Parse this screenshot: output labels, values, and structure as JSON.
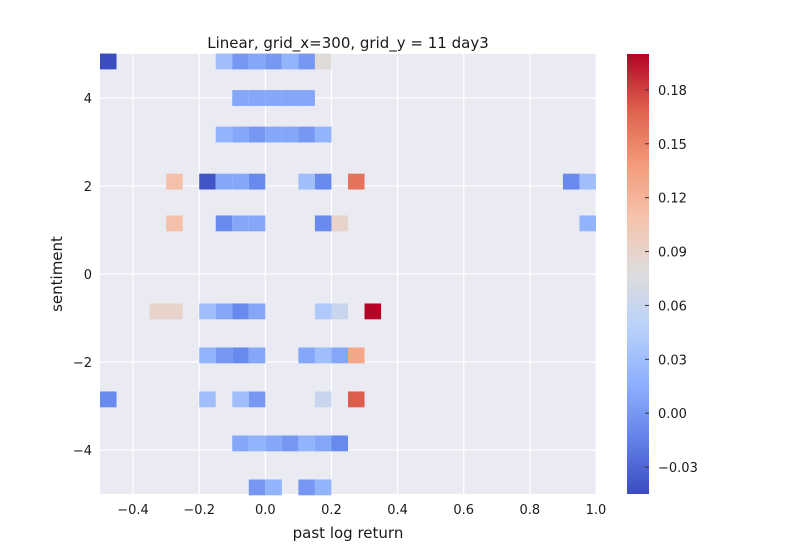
{
  "chart_data": {
    "type": "heatmap",
    "title": "Linear, grid_x=300, grid_y = 11 day3",
    "xlabel": "past log return",
    "ylabel": "sentiment",
    "xlim": [
      -0.5,
      1.0
    ],
    "ylim": [
      -5.0,
      5.0
    ],
    "grid": true,
    "background_color": "#eaeaf2",
    "x_tick_values": [
      -0.4,
      -0.2,
      0.0,
      0.2,
      0.4,
      0.6,
      0.8,
      1.0
    ],
    "x_tick_labels": [
      "−0.4",
      "−0.2",
      "0.0",
      "0.2",
      "0.4",
      "0.6",
      "0.8",
      "1.0"
    ],
    "y_tick_values": [
      4,
      2,
      0,
      -2,
      -4
    ],
    "y_tick_labels": [
      "4",
      "2",
      "0",
      "−2",
      "−4"
    ],
    "row_centers": [
      4.83,
      4.0,
      3.17,
      2.1,
      1.15,
      -0.85,
      -1.85,
      -2.85,
      -3.85,
      -4.85
    ],
    "row_height": 0.36,
    "cell_width": 0.05,
    "colormap": "coolwarm",
    "colorbar": {
      "vmin": -0.045,
      "vmax": 0.2,
      "tick_values": [
        -0.03,
        0.0,
        0.03,
        0.06,
        0.09,
        0.12,
        0.15,
        0.18
      ],
      "tick_labels": [
        "−0.03",
        "0.00",
        "0.03",
        "0.06",
        "0.09",
        "0.12",
        "0.15",
        "0.18"
      ]
    },
    "cells": [
      {
        "row": 0,
        "x": -0.475,
        "value": -0.045
      },
      {
        "row": 0,
        "x": -0.125,
        "value": 0.03
      },
      {
        "row": 0,
        "x": -0.075,
        "value": 0.0
      },
      {
        "row": 0,
        "x": -0.025,
        "value": 0.01
      },
      {
        "row": 0,
        "x": 0.025,
        "value": 0.0
      },
      {
        "row": 0,
        "x": 0.075,
        "value": 0.02
      },
      {
        "row": 0,
        "x": 0.125,
        "value": 0.0
      },
      {
        "row": 0,
        "x": 0.175,
        "value": 0.08
      },
      {
        "row": 1,
        "x": -0.075,
        "value": 0.01
      },
      {
        "row": 1,
        "x": -0.025,
        "value": 0.01
      },
      {
        "row": 1,
        "x": 0.025,
        "value": 0.01
      },
      {
        "row": 1,
        "x": 0.075,
        "value": 0.01
      },
      {
        "row": 1,
        "x": 0.125,
        "value": 0.01
      },
      {
        "row": 2,
        "x": -0.125,
        "value": 0.02
      },
      {
        "row": 2,
        "x": -0.075,
        "value": 0.01
      },
      {
        "row": 2,
        "x": -0.025,
        "value": 0.0
      },
      {
        "row": 2,
        "x": 0.025,
        "value": 0.01
      },
      {
        "row": 2,
        "x": 0.075,
        "value": 0.01
      },
      {
        "row": 2,
        "x": 0.125,
        "value": 0.0
      },
      {
        "row": 2,
        "x": 0.175,
        "value": 0.02
      },
      {
        "row": 3,
        "x": -0.275,
        "value": 0.11
      },
      {
        "row": 3,
        "x": -0.175,
        "value": -0.04
      },
      {
        "row": 3,
        "x": -0.125,
        "value": 0.01
      },
      {
        "row": 3,
        "x": -0.075,
        "value": 0.01
      },
      {
        "row": 3,
        "x": -0.025,
        "value": -0.01
      },
      {
        "row": 3,
        "x": 0.125,
        "value": 0.03
      },
      {
        "row": 3,
        "x": 0.175,
        "value": -0.01
      },
      {
        "row": 3,
        "x": 0.275,
        "value": 0.16
      },
      {
        "row": 3,
        "x": 0.925,
        "value": -0.01
      },
      {
        "row": 3,
        "x": 0.975,
        "value": 0.03
      },
      {
        "row": 4,
        "x": -0.275,
        "value": 0.11
      },
      {
        "row": 4,
        "x": -0.125,
        "value": -0.01
      },
      {
        "row": 4,
        "x": -0.075,
        "value": 0.01
      },
      {
        "row": 4,
        "x": -0.025,
        "value": 0.01
      },
      {
        "row": 4,
        "x": 0.175,
        "value": -0.01
      },
      {
        "row": 4,
        "x": 0.225,
        "value": 0.09
      },
      {
        "row": 4,
        "x": 0.975,
        "value": 0.02
      },
      {
        "row": 5,
        "x": -0.325,
        "value": 0.09
      },
      {
        "row": 5,
        "x": -0.275,
        "value": 0.09
      },
      {
        "row": 5,
        "x": -0.175,
        "value": 0.03
      },
      {
        "row": 5,
        "x": -0.125,
        "value": 0.01
      },
      {
        "row": 5,
        "x": -0.075,
        "value": -0.01
      },
      {
        "row": 5,
        "x": -0.025,
        "value": 0.01
      },
      {
        "row": 5,
        "x": 0.175,
        "value": 0.04
      },
      {
        "row": 5,
        "x": 0.225,
        "value": 0.06
      },
      {
        "row": 5,
        "x": 0.325,
        "value": 0.2
      },
      {
        "row": 6,
        "x": -0.175,
        "value": 0.02
      },
      {
        "row": 6,
        "x": -0.125,
        "value": 0.0
      },
      {
        "row": 6,
        "x": -0.075,
        "value": -0.01
      },
      {
        "row": 6,
        "x": -0.025,
        "value": 0.01
      },
      {
        "row": 6,
        "x": 0.125,
        "value": 0.01
      },
      {
        "row": 6,
        "x": 0.175,
        "value": 0.03
      },
      {
        "row": 6,
        "x": 0.225,
        "value": 0.01
      },
      {
        "row": 6,
        "x": 0.275,
        "value": 0.13
      },
      {
        "row": 7,
        "x": -0.475,
        "value": -0.01
      },
      {
        "row": 7,
        "x": -0.175,
        "value": 0.03
      },
      {
        "row": 7,
        "x": -0.075,
        "value": 0.03
      },
      {
        "row": 7,
        "x": -0.025,
        "value": 0.0
      },
      {
        "row": 7,
        "x": 0.175,
        "value": 0.06
      },
      {
        "row": 7,
        "x": 0.275,
        "value": 0.17
      },
      {
        "row": 8,
        "x": -0.075,
        "value": 0.01
      },
      {
        "row": 8,
        "x": -0.025,
        "value": 0.02
      },
      {
        "row": 8,
        "x": 0.025,
        "value": 0.01
      },
      {
        "row": 8,
        "x": 0.075,
        "value": 0.0
      },
      {
        "row": 8,
        "x": 0.125,
        "value": 0.02
      },
      {
        "row": 8,
        "x": 0.175,
        "value": 0.01
      },
      {
        "row": 8,
        "x": 0.225,
        "value": -0.01
      },
      {
        "row": 9,
        "x": -0.025,
        "value": 0.0
      },
      {
        "row": 9,
        "x": 0.025,
        "value": 0.02
      },
      {
        "row": 9,
        "x": 0.125,
        "value": 0.0
      },
      {
        "row": 9,
        "x": 0.175,
        "value": 0.02
      }
    ]
  }
}
